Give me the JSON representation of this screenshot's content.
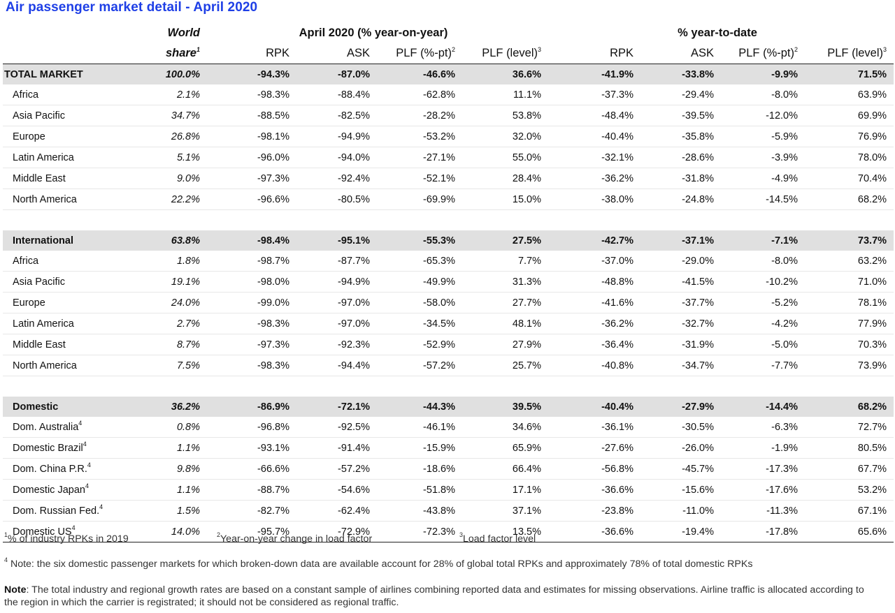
{
  "title": "Air passenger market detail - April 2020",
  "header": {
    "world": "World",
    "share": "share",
    "share_sup": "1",
    "group1": "April 2020 (% year-on-year)",
    "group2": "% year-to-date",
    "rpk": "RPK",
    "ask": "ASK",
    "plf_pt": "PLF (%-pt)",
    "plf_pt_sup": "2",
    "plf_level": "PLF (level)",
    "plf_level_sup": "3"
  },
  "rows": [
    {
      "label": "TOTAL MARKET",
      "sup": "",
      "share": "100.0%",
      "v": [
        "-94.3%",
        "-87.0%",
        "-46.6%",
        "36.6%",
        "-41.9%",
        "-33.8%",
        "-9.9%",
        "71.5%"
      ]
    },
    {
      "label": "Africa",
      "sup": "",
      "share": "2.1%",
      "v": [
        "-98.3%",
        "-88.4%",
        "-62.8%",
        "11.1%",
        "-37.3%",
        "-29.4%",
        "-8.0%",
        "63.9%"
      ]
    },
    {
      "label": "Asia Pacific",
      "sup": "",
      "share": "34.7%",
      "v": [
        "-88.5%",
        "-82.5%",
        "-28.2%",
        "53.8%",
        "-48.4%",
        "-39.5%",
        "-12.0%",
        "69.9%"
      ]
    },
    {
      "label": "Europe",
      "sup": "",
      "share": "26.8%",
      "v": [
        "-98.1%",
        "-94.9%",
        "-53.2%",
        "32.0%",
        "-40.4%",
        "-35.8%",
        "-5.9%",
        "76.9%"
      ]
    },
    {
      "label": "Latin America",
      "sup": "",
      "share": "5.1%",
      "v": [
        "-96.0%",
        "-94.0%",
        "-27.1%",
        "55.0%",
        "-32.1%",
        "-28.6%",
        "-3.9%",
        "78.0%"
      ]
    },
    {
      "label": "Middle East",
      "sup": "",
      "share": "9.0%",
      "v": [
        "-97.3%",
        "-92.4%",
        "-52.1%",
        "28.4%",
        "-36.2%",
        "-31.8%",
        "-4.9%",
        "70.4%"
      ]
    },
    {
      "label": "North America",
      "sup": "",
      "share": "22.2%",
      "v": [
        "-96.6%",
        "-80.5%",
        "-69.9%",
        "15.0%",
        "-38.0%",
        "-24.8%",
        "-14.5%",
        "68.2%"
      ]
    },
    {
      "label": "International",
      "sup": "",
      "share": "63.8%",
      "v": [
        "-98.4%",
        "-95.1%",
        "-55.3%",
        "27.5%",
        "-42.7%",
        "-37.1%",
        "-7.1%",
        "73.7%"
      ]
    },
    {
      "label": "Africa",
      "sup": "",
      "share": "1.8%",
      "v": [
        "-98.7%",
        "-87.7%",
        "-65.3%",
        "7.7%",
        "-37.0%",
        "-29.0%",
        "-8.0%",
        "63.2%"
      ]
    },
    {
      "label": "Asia Pacific",
      "sup": "",
      "share": "19.1%",
      "v": [
        "-98.0%",
        "-94.9%",
        "-49.9%",
        "31.3%",
        "-48.8%",
        "-41.5%",
        "-10.2%",
        "71.0%"
      ]
    },
    {
      "label": "Europe",
      "sup": "",
      "share": "24.0%",
      "v": [
        "-99.0%",
        "-97.0%",
        "-58.0%",
        "27.7%",
        "-41.6%",
        "-37.7%",
        "-5.2%",
        "78.1%"
      ]
    },
    {
      "label": "Latin America",
      "sup": "",
      "share": "2.7%",
      "v": [
        "-98.3%",
        "-97.0%",
        "-34.5%",
        "48.1%",
        "-36.2%",
        "-32.7%",
        "-4.2%",
        "77.9%"
      ]
    },
    {
      "label": "Middle East",
      "sup": "",
      "share": "8.7%",
      "v": [
        "-97.3%",
        "-92.3%",
        "-52.9%",
        "27.9%",
        "-36.4%",
        "-31.9%",
        "-5.0%",
        "70.3%"
      ]
    },
    {
      "label": "North America",
      "sup": "",
      "share": "7.5%",
      "v": [
        "-98.3%",
        "-94.4%",
        "-57.2%",
        "25.7%",
        "-40.8%",
        "-34.7%",
        "-7.7%",
        "73.9%"
      ]
    },
    {
      "label": "Domestic",
      "sup": "",
      "share": "36.2%",
      "v": [
        "-86.9%",
        "-72.1%",
        "-44.3%",
        "39.5%",
        "-40.4%",
        "-27.9%",
        "-14.4%",
        "68.2%"
      ]
    },
    {
      "label": "Dom. Australia",
      "sup": "4",
      "share": "0.8%",
      "v": [
        "-96.8%",
        "-92.5%",
        "-46.1%",
        "34.6%",
        "-36.1%",
        "-30.5%",
        "-6.3%",
        "72.7%"
      ]
    },
    {
      "label": "Domestic Brazil",
      "sup": "4",
      "share": "1.1%",
      "v": [
        "-93.1%",
        "-91.4%",
        "-15.9%",
        "65.9%",
        "-27.6%",
        "-26.0%",
        "-1.9%",
        "80.5%"
      ]
    },
    {
      "label": "Dom. China P.R.",
      "sup": "4",
      "share": "9.8%",
      "v": [
        "-66.6%",
        "-57.2%",
        "-18.6%",
        "66.4%",
        "-56.8%",
        "-45.7%",
        "-17.3%",
        "67.7%"
      ]
    },
    {
      "label": "Domestic Japan",
      "sup": "4",
      "share": "1.1%",
      "v": [
        "-88.7%",
        "-54.6%",
        "-51.8%",
        "17.1%",
        "-36.6%",
        "-15.6%",
        "-17.6%",
        "53.2%"
      ]
    },
    {
      "label": "Dom. Russian Fed.",
      "sup": "4",
      "share": "1.5%",
      "v": [
        "-82.7%",
        "-62.4%",
        "-43.8%",
        "37.1%",
        "-23.8%",
        "-11.0%",
        "-11.3%",
        "67.1%"
      ]
    },
    {
      "label": "Domestic US",
      "sup": "4",
      "share": "14.0%",
      "v": [
        "-95.7%",
        "-72.9%",
        "-72.3%",
        "13.5%",
        "-36.6%",
        "-19.4%",
        "-17.8%",
        "65.6%"
      ]
    }
  ],
  "footnotes": {
    "f1_sup": "1",
    "f1": "% of industry RPKs in 2019",
    "f2_sup": "2",
    "f2": "Year-on-year change in load factor",
    "f3_sup": "3",
    "f3": "Load factor level",
    "f4_sup": "4",
    "f4": " Note: the six domestic passenger markets for which broken-down data are available account for 28% of global total RPKs and approximately 78% of total domestic RPKs",
    "note_label": "Note",
    "note_text": ": The total industry and regional growth rates are based on a constant sample of airlines combining reported data and estimates for missing observations. Airline traffic is allocated according to the region in which the carrier is registrated; it should not be considered as regional traffic."
  }
}
